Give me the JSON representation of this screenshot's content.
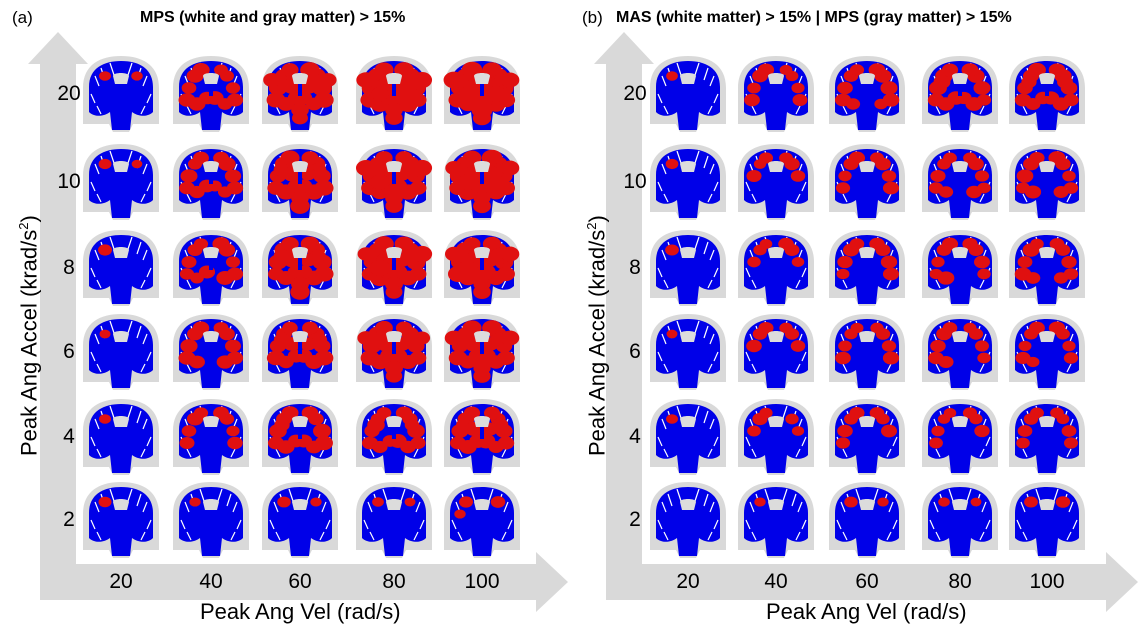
{
  "figure": {
    "panel_a": {
      "letter": "(a)",
      "title": "MPS (white and gray matter) > 15%",
      "y_axis_label": "Peak Ang Accel (krad/s",
      "y_axis_label_sup": "2",
      "y_axis_label_end": ")",
      "x_axis_label": "Peak Ang Vel (rad/s)",
      "x_ticks": [
        "20",
        "40",
        "60",
        "80",
        "100"
      ],
      "y_ticks": [
        "20",
        "10",
        "8",
        "6",
        "4",
        "2"
      ],
      "red_fraction_grid": [
        [
          0.08,
          0.45,
          0.75,
          0.85,
          0.9
        ],
        [
          0.06,
          0.45,
          0.7,
          0.82,
          0.85
        ],
        [
          0.05,
          0.42,
          0.68,
          0.8,
          0.82
        ],
        [
          0.04,
          0.4,
          0.62,
          0.75,
          0.78
        ],
        [
          0.03,
          0.3,
          0.5,
          0.55,
          0.6
        ],
        [
          0.02,
          0.05,
          0.06,
          0.08,
          0.1
        ]
      ]
    },
    "panel_b": {
      "letter": "(b)",
      "title": "MAS (white matter) > 15% | MPS (gray matter) > 15%",
      "y_axis_label": "Peak Ang Accel (krad/s",
      "y_axis_label_sup": "2",
      "y_axis_label_end": ")",
      "x_axis_label": "Peak Ang Vel (rad/s)",
      "x_ticks": [
        "20",
        "40",
        "60",
        "80",
        "100"
      ],
      "y_ticks": [
        "20",
        "10",
        "8",
        "6",
        "4",
        "2"
      ],
      "red_fraction_grid": [
        [
          0.05,
          0.3,
          0.4,
          0.5,
          0.55
        ],
        [
          0.03,
          0.22,
          0.32,
          0.38,
          0.4
        ],
        [
          0.03,
          0.22,
          0.3,
          0.36,
          0.38
        ],
        [
          0.03,
          0.22,
          0.3,
          0.35,
          0.36
        ],
        [
          0.02,
          0.18,
          0.25,
          0.28,
          0.3
        ],
        [
          0.01,
          0.05,
          0.06,
          0.07,
          0.08
        ]
      ]
    },
    "colors": {
      "injured": "#e01010",
      "uninjured": "#0000e8",
      "skull": "#d9d9d9",
      "ventricle": "#dcdcdc",
      "axis_arrow": "#d9d9d9"
    }
  }
}
